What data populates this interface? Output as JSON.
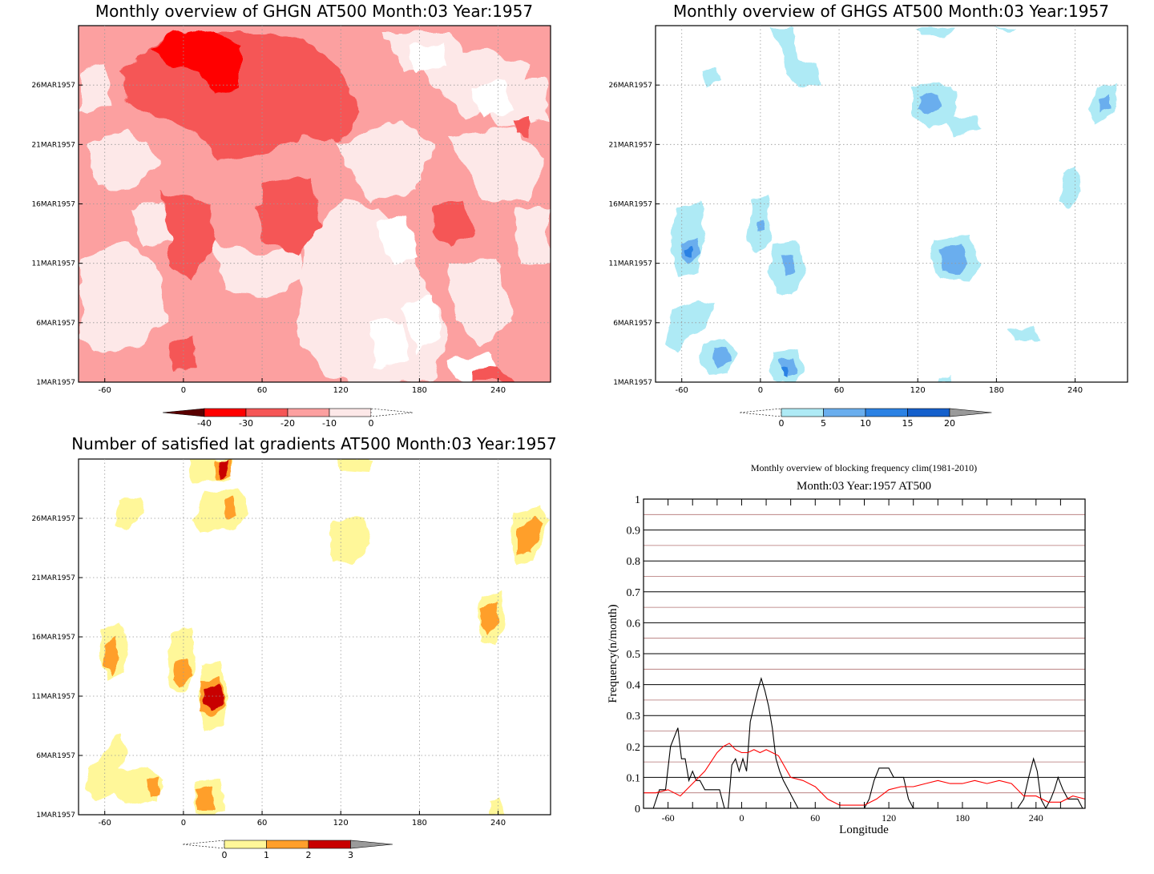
{
  "chart_data": [
    {
      "type": "heatmap",
      "title": "Monthly overview of GHGN AT500 Month:03 Year:1957",
      "x_ticks": [
        -60,
        0,
        60,
        120,
        180,
        240
      ],
      "y_ticks": [
        "1MAR1957",
        "6MAR1957",
        "11MAR1957",
        "16MAR1957",
        "21MAR1957",
        "26MAR1957"
      ],
      "xlim": [
        -80,
        280
      ],
      "colorbar": {
        "labels": [
          "-40",
          "-30",
          "-20",
          "-10",
          "0"
        ],
        "colors": [
          "#5a0000",
          "#ff0000",
          "#f55656",
          "#fca0a0",
          "#fde8e8",
          "#ffffff"
        ]
      },
      "base_color": "#fca0a0"
    },
    {
      "type": "heatmap",
      "title": "Monthly overview of GHGS AT500 Month:03 Year:1957",
      "x_ticks": [
        -60,
        0,
        60,
        120,
        180,
        240
      ],
      "y_ticks": [
        "1MAR1957",
        "6MAR1957",
        "11MAR1957",
        "16MAR1957",
        "21MAR1957",
        "26MAR1957"
      ],
      "xlim": [
        -80,
        280
      ],
      "colorbar": {
        "labels": [
          "0",
          "5",
          "10",
          "15",
          "20"
        ],
        "colors": [
          "#ffffff",
          "#aeeaf5",
          "#6aaeee",
          "#2c82e4",
          "#1560cc",
          "#9a9a9a"
        ]
      },
      "base_color": "#ffffff"
    },
    {
      "type": "heatmap",
      "title": "Number of satisfied lat gradients AT500 Month:03 Year:1957",
      "x_ticks": [
        -60,
        0,
        60,
        120,
        180,
        240
      ],
      "y_ticks": [
        "1MAR1957",
        "6MAR1957",
        "11MAR1957",
        "16MAR1957",
        "21MAR1957",
        "26MAR1957"
      ],
      "xlim": [
        -80,
        280
      ],
      "colorbar": {
        "labels": [
          "0",
          "1",
          "2",
          "3"
        ],
        "colors": [
          "#ffffff",
          "#fff799",
          "#ff9f2c",
          "#c80000",
          "#9a9a9a"
        ]
      },
      "base_color": "#ffffff"
    },
    {
      "type": "line",
      "title": "Monthly overview of blocking frequency clim(1981-2010)",
      "subtitle": "Month:03 Year:1957  AT500",
      "xlabel": "Longitude",
      "ylabel": "Frequency(n/month)",
      "xlim": [
        -80,
        280
      ],
      "ylim": [
        0,
        1
      ],
      "x_ticks": [
        -60,
        0,
        60,
        120,
        180,
        240
      ],
      "y_ticks": [
        "0",
        "0.1",
        "0.2",
        "0.3",
        "0.4",
        "0.5",
        "0.6",
        "0.7",
        "0.8",
        "0.9",
        "1"
      ],
      "series": [
        {
          "color": "#000000",
          "x": [
            -80,
            -72,
            -67,
            -62,
            -58,
            -55,
            -52,
            -49,
            -46,
            -43,
            -40,
            -37,
            -34,
            -30,
            -26,
            -22,
            -18,
            -14,
            -11,
            -8,
            -5,
            -2,
            1,
            4,
            7,
            10,
            13,
            16,
            19,
            22,
            25,
            28,
            31,
            34,
            38,
            42,
            46,
            50,
            56,
            60,
            80,
            100,
            104,
            108,
            112,
            116,
            120,
            124,
            128,
            132,
            136,
            140,
            160,
            200,
            225,
            230,
            234,
            238,
            241,
            244,
            248,
            252,
            255,
            258,
            262,
            266,
            270,
            274,
            278,
            280
          ],
          "y": [
            0,
            0,
            0.06,
            0.06,
            0.2,
            0.23,
            0.26,
            0.16,
            0.16,
            0.09,
            0.12,
            0.09,
            0.09,
            0.06,
            0.06,
            0.06,
            0.06,
            0.0,
            0.0,
            0.14,
            0.16,
            0.12,
            0.16,
            0.12,
            0.28,
            0.33,
            0.38,
            0.42,
            0.38,
            0.33,
            0.26,
            0.16,
            0.12,
            0.09,
            0.06,
            0.03,
            0.0,
            0.0,
            0.0,
            0.0,
            0.0,
            0.0,
            0.03,
            0.09,
            0.13,
            0.13,
            0.13,
            0.1,
            0.1,
            0.1,
            0.03,
            0.0,
            0.0,
            0.0,
            0.0,
            0.03,
            0.1,
            0.16,
            0.12,
            0.03,
            0.0,
            0.03,
            0.06,
            0.1,
            0.06,
            0.03,
            0.03,
            0.03,
            0.0,
            0.0
          ]
        },
        {
          "color": "#ff0000",
          "x": [
            -80,
            -70,
            -60,
            -50,
            -40,
            -30,
            -20,
            -15,
            -10,
            -5,
            0,
            5,
            10,
            15,
            20,
            25,
            30,
            40,
            50,
            60,
            70,
            80,
            90,
            100,
            110,
            120,
            130,
            140,
            150,
            160,
            170,
            180,
            190,
            200,
            210,
            220,
            230,
            240,
            250,
            260,
            270,
            280
          ],
          "y": [
            0.05,
            0.05,
            0.06,
            0.04,
            0.08,
            0.12,
            0.18,
            0.2,
            0.21,
            0.19,
            0.18,
            0.18,
            0.19,
            0.18,
            0.19,
            0.18,
            0.17,
            0.1,
            0.09,
            0.07,
            0.03,
            0.01,
            0.01,
            0.01,
            0.03,
            0.06,
            0.07,
            0.07,
            0.08,
            0.09,
            0.08,
            0.08,
            0.09,
            0.08,
            0.09,
            0.08,
            0.04,
            0.04,
            0.02,
            0.02,
            0.04,
            0.03
          ]
        }
      ]
    }
  ]
}
